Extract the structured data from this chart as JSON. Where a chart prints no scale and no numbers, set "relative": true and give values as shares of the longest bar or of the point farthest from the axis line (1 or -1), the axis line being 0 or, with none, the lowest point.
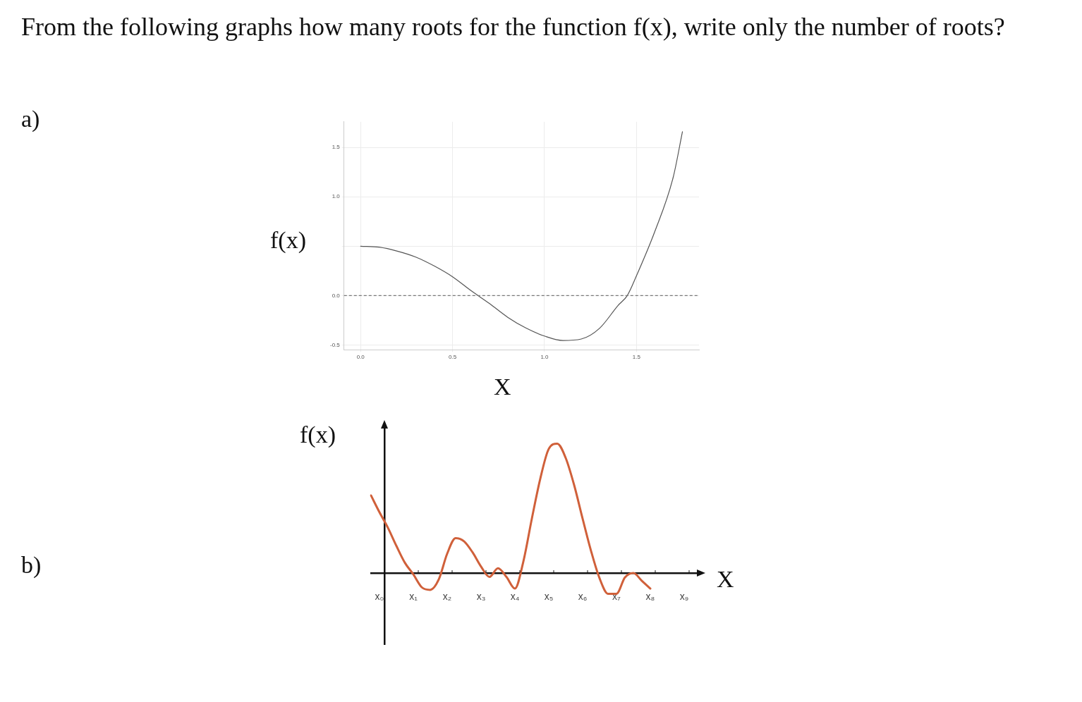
{
  "chart_data": [
    {
      "type": "line",
      "title": "From the following graphs how many roots for the function f(x), write only the number of roots?",
      "annotations": [
        "a)"
      ],
      "xlabel": "X",
      "ylabel": "f(x)",
      "x": [
        0,
        0.1,
        0.2,
        0.3,
        0.4,
        0.5,
        0.6,
        0.7,
        0.8,
        0.9,
        1.0,
        1.1,
        1.2,
        1.3,
        1.4,
        1.45,
        1.5,
        1.6,
        1.7,
        1.75
      ],
      "series": [
        {
          "color": "#555555",
          "values": [
            0.5,
            0.49,
            0.45,
            0.39,
            0.3,
            0.19,
            0.05,
            -0.08,
            -0.22,
            -0.33,
            -0.41,
            -0.455,
            -0.44,
            -0.33,
            -0.1,
            0.0,
            0.2,
            0.65,
            1.2,
            1.66
          ]
        }
      ],
      "xlim": [
        -0.09,
        1.84
      ],
      "ylim": [
        -0.55,
        1.76
      ],
      "xticks": [
        {
          "value": 0,
          "label": "0.0"
        },
        0.5,
        {
          "value": 1,
          "label": "1.0"
        },
        1.5
      ],
      "yticks": [
        -0.5,
        {
          "value": 0,
          "label": "0.0"
        },
        {
          "value": 0.5,
          "label": null
        },
        {
          "value": 1,
          "label": "1.0"
        },
        1.5
      ],
      "ref_lines": [
        {
          "axis": "y",
          "value": 0,
          "line_style": "dashed",
          "color": "#777777"
        }
      ],
      "grid": true,
      "legend": false
    },
    {
      "type": "line",
      "relative": true,
      "annotations": [
        "b)"
      ],
      "xlabel": "X",
      "ylabel": "f(x)",
      "tick_labels": "x",
      "categories": [
        null,
        "x₀",
        null,
        null,
        null,
        "x₁",
        null,
        null,
        null,
        "x₂",
        null,
        null,
        null,
        "x₃",
        null,
        null,
        null,
        "x₄",
        null,
        null,
        null,
        "x₅",
        null,
        null,
        null,
        "x₆",
        null,
        null,
        null,
        "x₇",
        null,
        null,
        null,
        "x₈",
        null,
        null,
        null,
        "x₉",
        null,
        null
      ],
      "series": [
        {
          "color": "#d0603a",
          "values": [
            0.6,
            0.47,
            0.35,
            0.21,
            0.08,
            -0.01,
            -0.11,
            -0.13,
            -0.05,
            0.15,
            0.27,
            0.245,
            0.16,
            0.05,
            -0.03,
            0.037,
            -0.03,
            -0.12,
            0.09,
            0.42,
            0.73,
            0.96,
            1,
            0.89,
            0.68,
            0.42,
            0.17,
            -0.04,
            -0.16,
            -0.16,
            -0.034,
            0.0,
            -0.06,
            -0.12,
            null,
            null,
            null,
            null,
            null,
            null
          ]
        }
      ],
      "grid": false,
      "legend": false
    }
  ]
}
